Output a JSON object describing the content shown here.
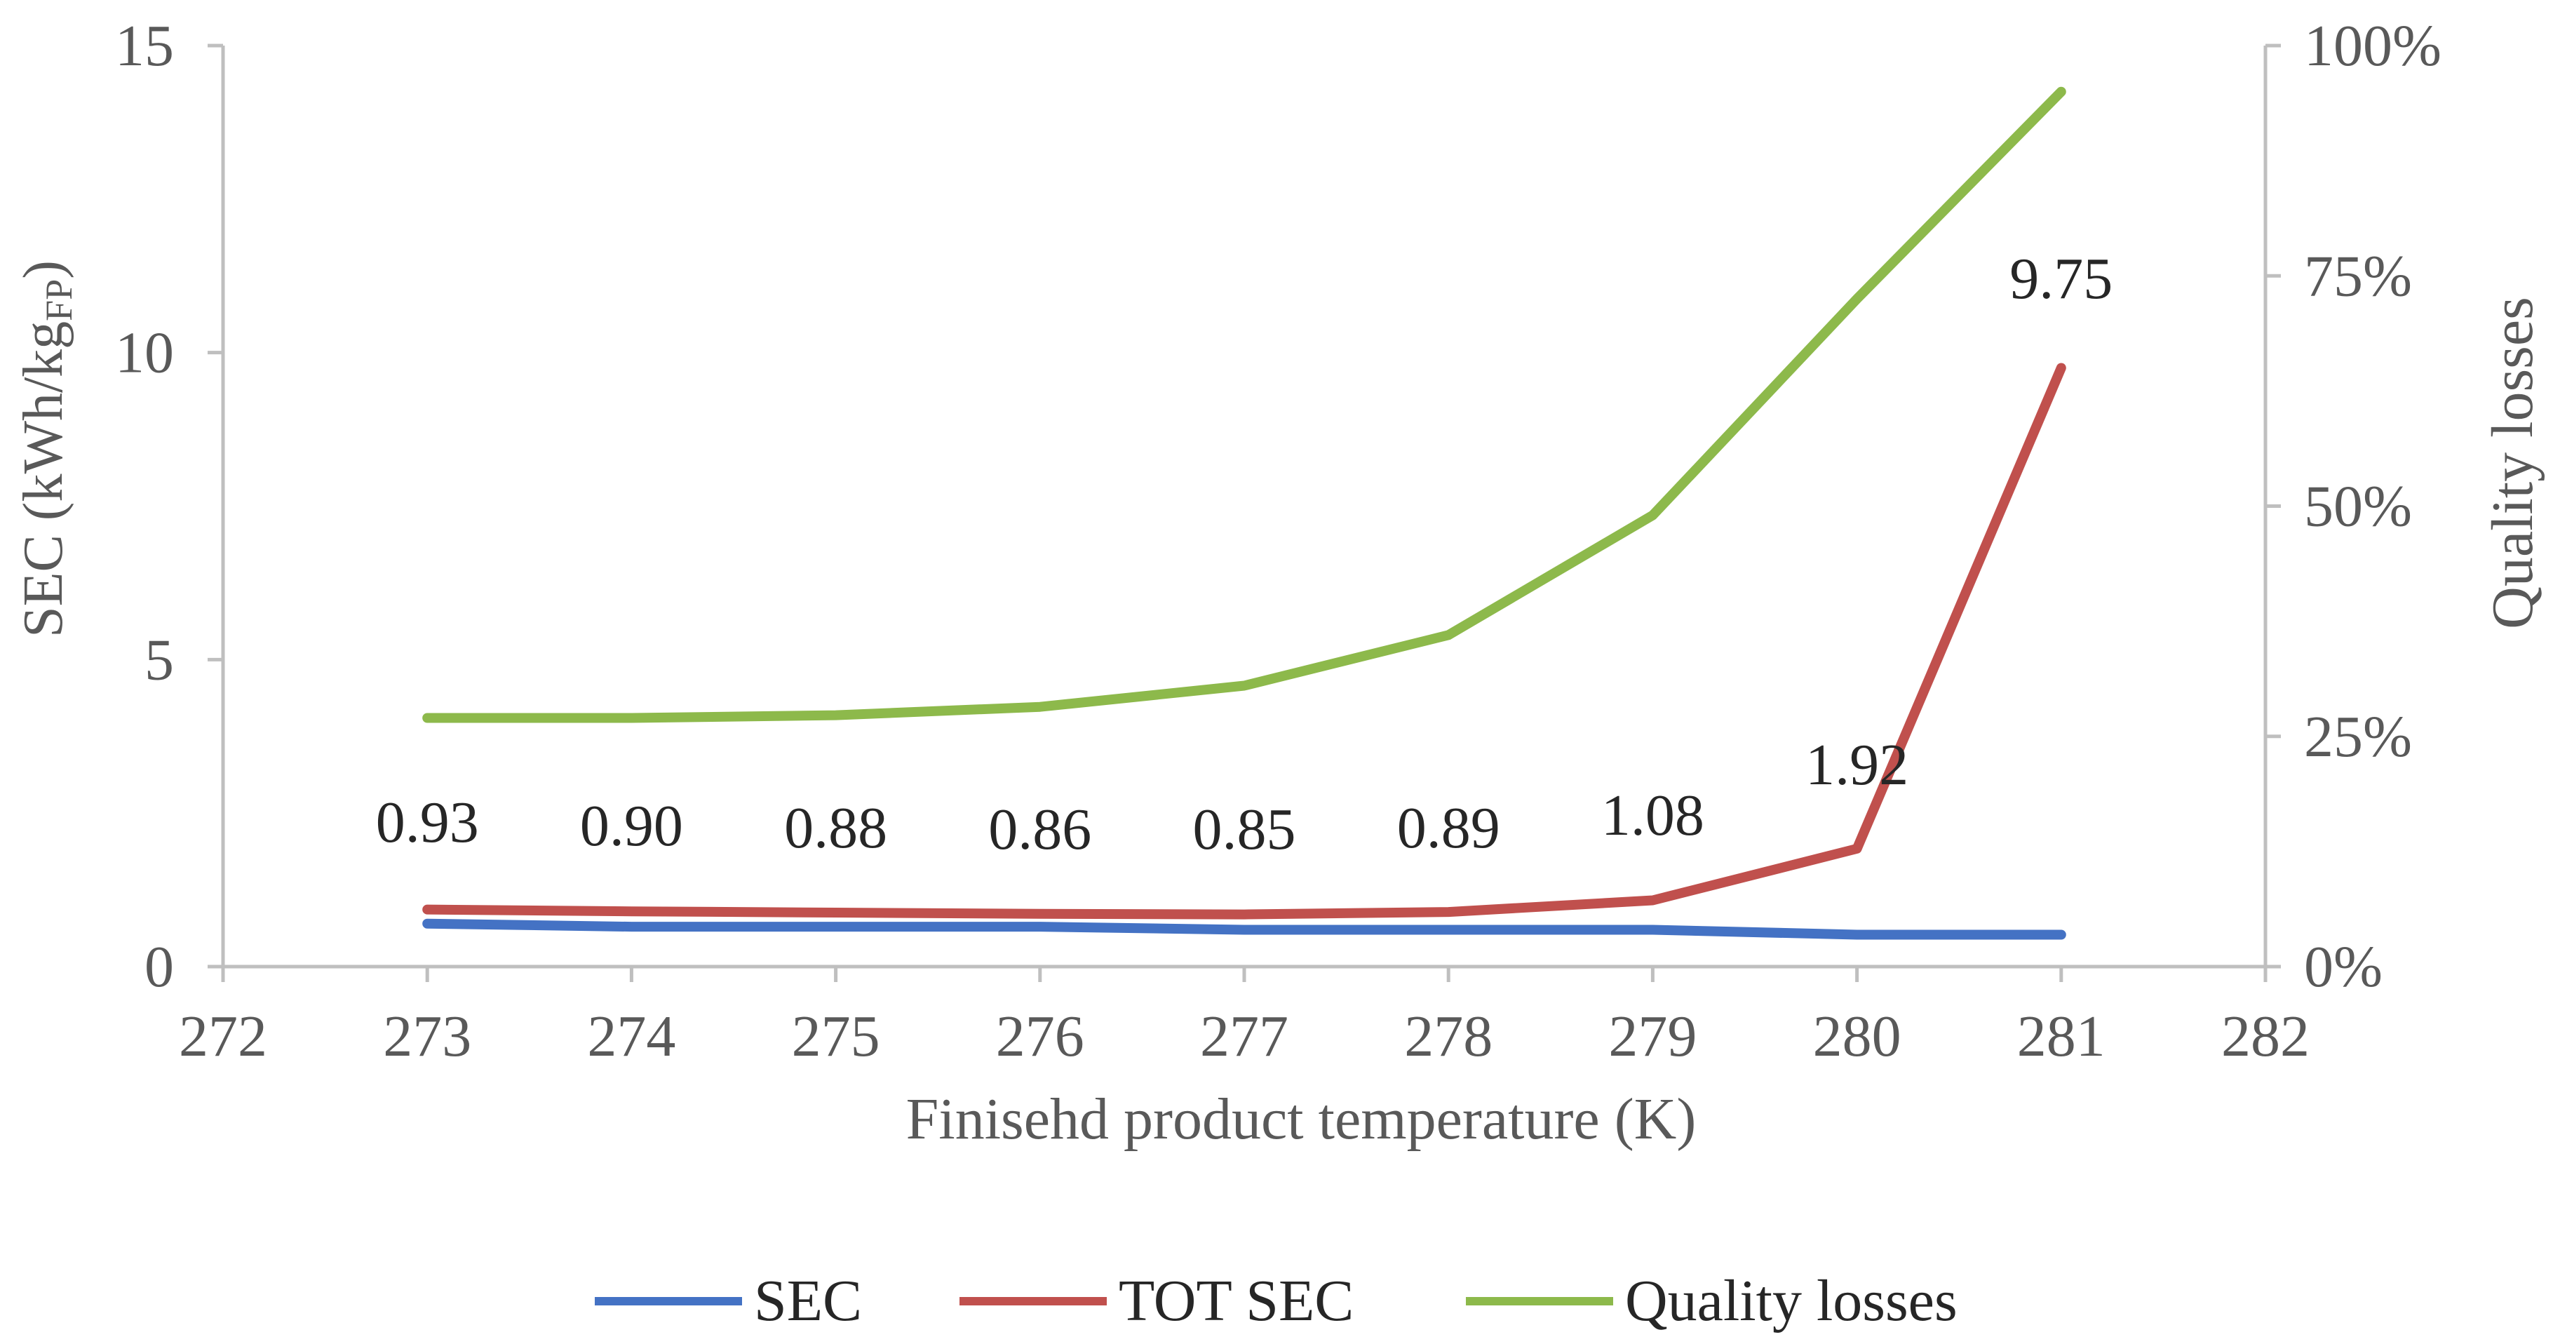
{
  "chart_data": {
    "type": "line",
    "title": "",
    "xlabel": "Finisehd product temperature (K)",
    "ylabel_main": "SEC (kWh/kg",
    "ylabel_sub": "FP",
    "ylabel_close": ")",
    "y2label": "Quality losses",
    "xlim": [
      272,
      282
    ],
    "ylim": [
      0,
      15
    ],
    "y2lim": [
      0,
      1
    ],
    "xticks": [
      272,
      273,
      274,
      275,
      276,
      277,
      278,
      279,
      280,
      281,
      282
    ],
    "yticks": [
      0,
      5,
      10,
      15
    ],
    "y2ticks": [
      "0%",
      "25%",
      "50%",
      "75%",
      "100%"
    ],
    "y2tick_values": [
      0,
      0.25,
      0.5,
      0.75,
      1.0
    ],
    "x": [
      273,
      274,
      275,
      276,
      277,
      278,
      279,
      280,
      281
    ],
    "series": [
      {
        "name": "SEC",
        "axis": "left",
        "color": "#4472c4",
        "values": [
          0.7,
          0.65,
          0.65,
          0.65,
          0.6,
          0.6,
          0.6,
          0.52,
          0.52
        ]
      },
      {
        "name": "TOT SEC",
        "axis": "left",
        "color": "#c0504d",
        "values": [
          0.93,
          0.9,
          0.88,
          0.86,
          0.85,
          0.89,
          1.08,
          1.92,
          9.75
        ],
        "data_labels": [
          "0.93",
          "0.90",
          "0.88",
          "0.86",
          "0.85",
          "0.89",
          "1.08",
          "1.92",
          "9.75"
        ]
      },
      {
        "name": "Quality losses",
        "axis": "right",
        "color": "#8db94b",
        "values": [
          0.27,
          0.27,
          0.273,
          0.282,
          0.305,
          0.36,
          0.49,
          0.725,
          0.95
        ]
      }
    ],
    "legend": {
      "position": "bottom",
      "items": [
        "SEC",
        "TOT SEC",
        "Quality losses"
      ]
    },
    "grid": false
  }
}
